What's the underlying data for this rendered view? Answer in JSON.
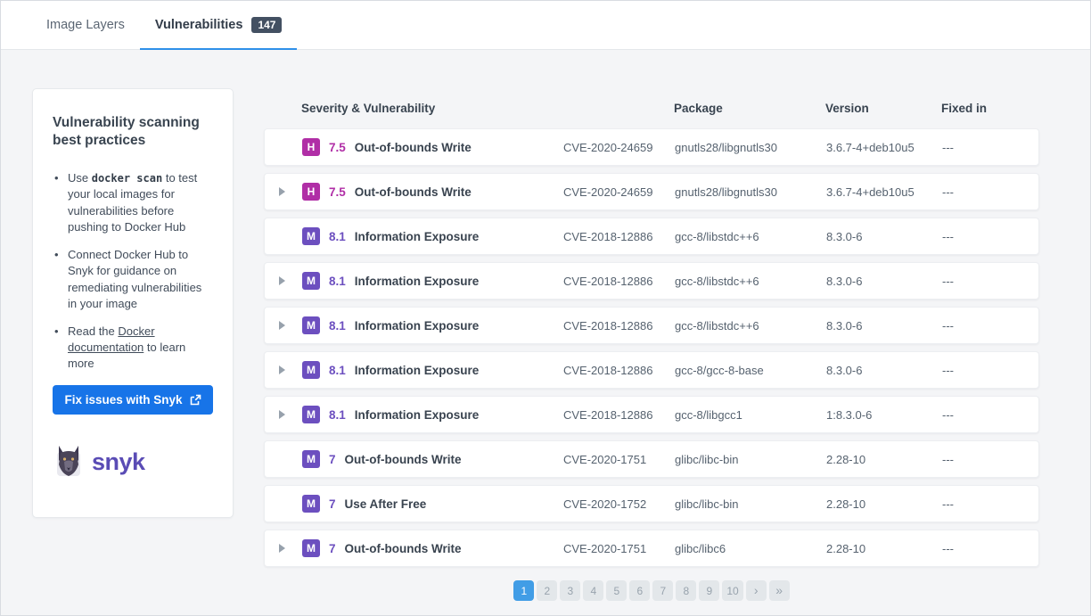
{
  "tabs": [
    {
      "label": "Image Layers",
      "active": false
    },
    {
      "label": "Vulnerabilities",
      "active": true,
      "badge": "147"
    }
  ],
  "sidebar": {
    "title": "Vulnerability scanning best practices",
    "bullets": [
      {
        "pre": "Use ",
        "code": "docker scan",
        "post": " to test your local images for vulnerabilities before pushing to Docker Hub"
      },
      {
        "text": "Connect Docker Hub to Snyk for guidance on remediating vulnerabilities in your image"
      },
      {
        "pre": "Read the ",
        "link": "Docker documentation",
        "post": " to learn more"
      }
    ],
    "button_label": "Fix issues with Snyk",
    "logo_text": "snyk"
  },
  "table": {
    "headers": {
      "severity": "Severity & Vulnerability",
      "package": "Package",
      "version": "Version",
      "fixed": "Fixed in"
    },
    "rows": [
      {
        "expandable": false,
        "severity": "H",
        "score": "7.5",
        "name": "Out-of-bounds Write",
        "cve": "CVE-2020-24659",
        "package": "gnutls28/libgnutls30",
        "version": "3.6.7-4+deb10u5",
        "fixed_in": "---"
      },
      {
        "expandable": true,
        "severity": "H",
        "score": "7.5",
        "name": "Out-of-bounds Write",
        "cve": "CVE-2020-24659",
        "package": "gnutls28/libgnutls30",
        "version": "3.6.7-4+deb10u5",
        "fixed_in": "---"
      },
      {
        "expandable": false,
        "severity": "M",
        "score": "8.1",
        "name": "Information Exposure",
        "cve": "CVE-2018-12886",
        "package": "gcc-8/libstdc++6",
        "version": "8.3.0-6",
        "fixed_in": "---"
      },
      {
        "expandable": true,
        "severity": "M",
        "score": "8.1",
        "name": "Information Exposure",
        "cve": "CVE-2018-12886",
        "package": "gcc-8/libstdc++6",
        "version": "8.3.0-6",
        "fixed_in": "---"
      },
      {
        "expandable": true,
        "severity": "M",
        "score": "8.1",
        "name": "Information Exposure",
        "cve": "CVE-2018-12886",
        "package": "gcc-8/libstdc++6",
        "version": "8.3.0-6",
        "fixed_in": "---"
      },
      {
        "expandable": true,
        "severity": "M",
        "score": "8.1",
        "name": "Information Exposure",
        "cve": "CVE-2018-12886",
        "package": "gcc-8/gcc-8-base",
        "version": "8.3.0-6",
        "fixed_in": "---"
      },
      {
        "expandable": true,
        "severity": "M",
        "score": "8.1",
        "name": "Information Exposure",
        "cve": "CVE-2018-12886",
        "package": "gcc-8/libgcc1",
        "version": "1:8.3.0-6",
        "fixed_in": "---"
      },
      {
        "expandable": false,
        "severity": "M",
        "score": "7",
        "name": "Out-of-bounds Write",
        "cve": "CVE-2020-1751",
        "package": "glibc/libc-bin",
        "version": "2.28-10",
        "fixed_in": "---"
      },
      {
        "expandable": false,
        "severity": "M",
        "score": "7",
        "name": "Use After Free",
        "cve": "CVE-2020-1752",
        "package": "glibc/libc-bin",
        "version": "2.28-10",
        "fixed_in": "---"
      },
      {
        "expandable": true,
        "severity": "M",
        "score": "7",
        "name": "Out-of-bounds Write",
        "cve": "CVE-2020-1751",
        "package": "glibc/libc6",
        "version": "2.28-10",
        "fixed_in": "---"
      }
    ]
  },
  "pagination": {
    "pages": [
      "1",
      "2",
      "3",
      "4",
      "5",
      "6",
      "7",
      "8",
      "9",
      "10"
    ],
    "active_page": "1",
    "next_label": "›",
    "last_label": "»"
  },
  "colors": {
    "tab_underline": "#2e90e9",
    "count_badge_bg": "#435062",
    "severity_high": "#b02ea6",
    "severity_medium": "#6c4fbf",
    "button_blue": "#1774e8",
    "pagination_active": "#419de6",
    "snyk_purple": "#5a4cb5",
    "page_background": "#f4f5f7"
  }
}
